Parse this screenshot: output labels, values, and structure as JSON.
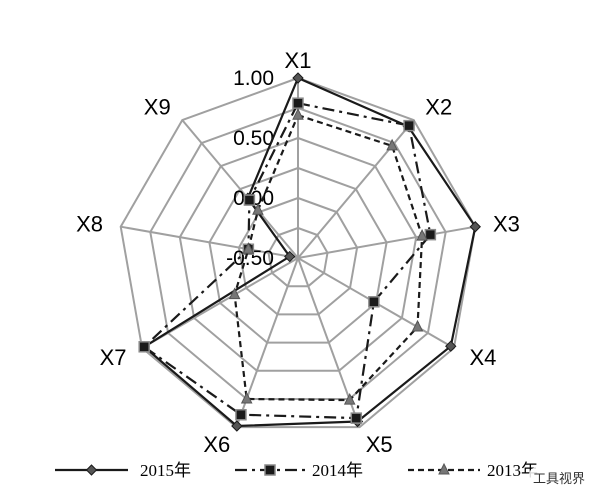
{
  "chart_data": {
    "type": "radar",
    "axes": [
      "X1",
      "X2",
      "X3",
      "X4",
      "X5",
      "X6",
      "X7",
      "X8",
      "X9"
    ],
    "range": [
      -0.5,
      1.0
    ],
    "ticks": [
      {
        "value": 1.0,
        "label": "1.00"
      },
      {
        "value": 0.5,
        "label": "0.50"
      },
      {
        "value": 0.0,
        "label": "0.00"
      },
      {
        "value": -0.5,
        "label": "-0.50"
      }
    ],
    "rings": [
      -0.25,
      0.0,
      0.25,
      0.5,
      0.75,
      1.0
    ],
    "legend_position": "bottom",
    "series": [
      {
        "name": "2015年",
        "style": "solid",
        "marker": "diamond",
        "color": "#1a1a1a",
        "values": [
          1.0,
          0.93,
          1.0,
          0.97,
          0.95,
          0.99,
          0.98,
          -0.43,
          0.15
        ]
      },
      {
        "name": "2014年",
        "style": "dashdot",
        "marker": "square",
        "color": "#1a1a1a",
        "values": [
          0.79,
          0.94,
          0.62,
          0.23,
          0.92,
          0.89,
          0.98,
          -0.08,
          0.13
        ]
      },
      {
        "name": "2013年",
        "style": "dash",
        "marker": "triangle",
        "color": "#1a1a1a",
        "values": [
          0.69,
          0.72,
          0.55,
          0.65,
          0.76,
          0.75,
          0.11,
          -0.08,
          0.02
        ]
      }
    ],
    "grid_color": "#a0a0a0"
  },
  "watermark": "工具视界"
}
